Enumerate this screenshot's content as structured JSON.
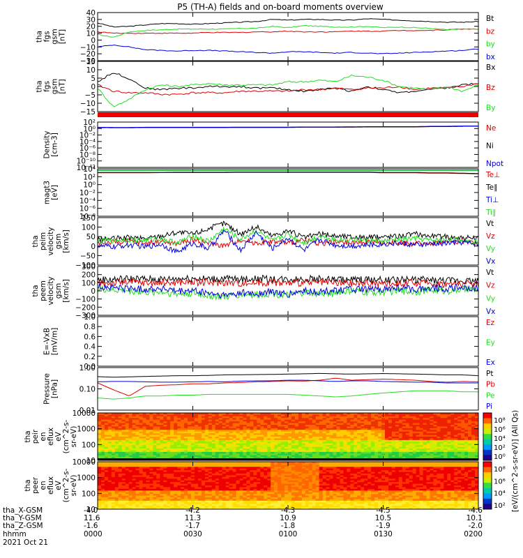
{
  "title": "P5 (TH-A) fields and on-board moments overview",
  "colors": {
    "black": "#000000",
    "red": "#dd0000",
    "green": "#22dd22",
    "blue": "#0000dd"
  },
  "colorbar": {
    "unit_label": "[eV/(cm^2-s-sr-eV)] (All Qs)",
    "panel1_ticks": [
      "10⁸",
      "10⁶",
      "10⁴",
      "10²",
      "10⁰"
    ],
    "panel2_ticks": [
      "10⁸",
      "10⁶",
      "10⁴",
      "10²"
    ]
  },
  "chart_data": [
    {
      "type": "line",
      "ylabel": [
        "tha",
        "fgs",
        "gsm",
        "[nT]"
      ],
      "yticks": [
        "40",
        "30",
        "20",
        "10",
        "0",
        "−10",
        "−20",
        "−30"
      ],
      "ylim": [
        -30,
        40
      ],
      "series": [
        {
          "name": "Bt",
          "color": "#000000",
          "values": [
            25,
            19,
            20,
            22,
            24,
            24,
            23,
            24,
            25,
            26,
            27,
            30,
            29,
            30,
            30,
            29,
            29,
            31,
            30,
            29,
            28,
            27,
            26,
            26,
            27
          ]
        },
        {
          "name": "bz",
          "color": "#dd0000",
          "values": [
            12,
            10,
            10,
            10,
            10,
            10,
            10,
            11,
            11,
            11,
            12,
            12,
            13,
            12,
            12,
            12,
            13,
            13,
            13,
            14,
            14,
            14,
            15,
            16,
            16
          ]
        },
        {
          "name": "by",
          "color": "#22dd22",
          "values": [
            8,
            4,
            12,
            14,
            15,
            16,
            16,
            16,
            16,
            17,
            17,
            20,
            18,
            21,
            20,
            19,
            19,
            20,
            18,
            19,
            18,
            17,
            15,
            16,
            16
          ]
        },
        {
          "name": "bx",
          "color": "#0000dd",
          "values": [
            -10,
            -7,
            -10,
            -14,
            -15,
            -16,
            -15,
            -15,
            -16,
            -17,
            -18,
            -19,
            -17,
            -17,
            -18,
            -19,
            -18,
            -19,
            -20,
            -19,
            -18,
            -17,
            -16,
            -15,
            -13
          ]
        }
      ]
    },
    {
      "type": "line",
      "ylabel": [
        "tha",
        "fgs",
        "gsm",
        "[nT]"
      ],
      "yticks": [
        "15",
        "10",
        "5",
        "0",
        "−5",
        "−10",
        "−15"
      ],
      "ylim": [
        -17,
        15
      ],
      "series": [
        {
          "name": "Bx",
          "color": "#000000",
          "values": [
            2,
            8,
            4,
            -2,
            -3,
            -2,
            -2,
            -1,
            -1,
            -1,
            -2,
            -2,
            -3,
            -4,
            -3,
            -2,
            -4,
            -1,
            -3,
            -5,
            -4,
            -3,
            -2,
            0,
            1
          ]
        },
        {
          "name": "Bz",
          "color": "#dd0000",
          "values": [
            0,
            -4,
            -5,
            -5,
            -6,
            -6,
            -5,
            -5,
            -5,
            -4,
            -4,
            -4,
            -4,
            -3,
            -3,
            -2,
            -3,
            -2,
            -2,
            -1,
            -3,
            -2,
            -2,
            -1,
            1
          ]
        },
        {
          "name": "By",
          "color": "#22dd22",
          "values": [
            -2,
            -14,
            -9,
            -3,
            0,
            -1,
            0,
            1,
            0,
            0,
            0,
            0,
            2,
            2,
            3,
            2,
            6,
            5,
            3,
            -1,
            -2,
            -3,
            -1,
            -4,
            0
          ]
        }
      ]
    },
    {
      "type": "line",
      "ylabel": [
        "Density",
        "[cm-3]"
      ],
      "yticks": [
        "10²",
        "10⁰",
        "10⁻²",
        "10⁻⁴",
        "10⁻⁶",
        "10⁻⁸",
        "10⁻¹⁰",
        "10⁻¹²"
      ],
      "ylim_exp": [
        -12,
        2
      ],
      "log": true,
      "series": [
        {
          "name": "Ne",
          "color": "#dd0000",
          "values_exp": [
            0.3,
            0.25,
            0.25,
            0.3,
            0.3,
            0.3,
            0.3,
            0.3,
            0.3,
            0.35,
            0.35,
            0.35,
            0.35,
            0.4,
            0.4,
            0.4,
            0.45,
            0.5,
            0.5,
            0.5,
            0.5,
            0.6,
            0.6,
            0.7,
            0.7
          ]
        },
        {
          "name": "Ni",
          "color": "#000000",
          "values_exp": [
            0.3,
            0.25,
            0.25,
            0.3,
            0.3,
            0.3,
            0.3,
            0.3,
            0.3,
            0.35,
            0.35,
            0.35,
            0.35,
            0.4,
            0.4,
            0.4,
            0.45,
            0.5,
            0.5,
            0.5,
            0.5,
            0.6,
            0.6,
            0.7,
            0.7
          ]
        },
        {
          "name": "Npot",
          "color": "#0000dd",
          "values_exp": [
            0.4,
            0.35,
            0.35,
            0.4,
            0.4,
            0.4,
            0.4,
            0.4,
            0.4,
            0.45,
            0.45,
            0.45,
            0.45,
            0.5,
            0.5,
            0.5,
            0.55,
            0.6,
            0.6,
            0.6,
            0.6,
            0.7,
            0.7,
            0.8,
            0.8
          ]
        }
      ]
    },
    {
      "type": "line",
      "ylabel": [
        "magt3",
        "[eV]"
      ],
      "yticks": [
        "10⁴",
        "10²",
        "10⁰",
        "10⁻²",
        "10⁻⁴",
        "10⁻⁶",
        "10⁻⁸"
      ],
      "ylim_exp": [
        -9,
        4
      ],
      "log": true,
      "series": [
        {
          "name": "Te⊥",
          "color": "#dd0000",
          "values_exp": [
            2.9,
            2.9,
            2.9,
            2.9,
            2.95,
            2.95,
            2.95,
            2.95,
            2.95,
            3,
            3,
            3,
            3,
            3,
            3,
            3,
            3,
            3,
            2.9,
            2.9,
            2.9,
            2.8,
            2.8,
            2.7,
            2.6
          ]
        },
        {
          "name": "Te∥",
          "color": "#000000",
          "values_exp": [
            3.0,
            3.0,
            3.0,
            3.0,
            3.0,
            3.05,
            3.05,
            3.05,
            3.05,
            3.1,
            3.1,
            3.1,
            3.1,
            3.1,
            3.1,
            3.1,
            3.1,
            3.1,
            3.0,
            3.0,
            3.0,
            2.9,
            2.9,
            2.8,
            2.7
          ]
        },
        {
          "name": "Ti⊥",
          "color": "#0000dd",
          "values_exp": [
            3.6,
            3.6,
            3.6,
            3.6,
            3.6,
            3.6,
            3.6,
            3.6,
            3.6,
            3.6,
            3.6,
            3.6,
            3.6,
            3.6,
            3.6,
            3.6,
            3.6,
            3.6,
            3.6,
            3.6,
            3.6,
            3.6,
            3.6,
            3.6,
            3.6
          ]
        },
        {
          "name": "Ti∥",
          "color": "#22dd22",
          "values_exp": [
            3.5,
            3.5,
            3.5,
            3.5,
            3.5,
            3.5,
            3.5,
            3.5,
            3.5,
            3.5,
            3.5,
            3.5,
            3.5,
            3.5,
            3.5,
            3.5,
            3.5,
            3.5,
            3.5,
            3.5,
            3.5,
            3.5,
            3.5,
            3.5,
            3.5
          ]
        }
      ]
    },
    {
      "type": "line",
      "ylabel": [
        "tha",
        "peim",
        "velocity",
        "gsm",
        "[km/s]"
      ],
      "yticks": [
        "150",
        "100",
        "50",
        "0",
        "−50",
        "−100"
      ],
      "ylim": [
        -110,
        150
      ],
      "series": [
        {
          "name": "Vt",
          "color": "#000000",
          "values": [
            30,
            35,
            40,
            35,
            50,
            70,
            60,
            90,
            120,
            60,
            100,
            50,
            80,
            40,
            60,
            50,
            45,
            40,
            45,
            50,
            60,
            50,
            45,
            40,
            35
          ]
        },
        {
          "name": "Vz",
          "color": "#dd0000",
          "values": [
            10,
            15,
            20,
            10,
            20,
            5,
            30,
            10,
            -5,
            30,
            10,
            20,
            10,
            25,
            10,
            15,
            10,
            20,
            10,
            15,
            5,
            10,
            15,
            20,
            10
          ]
        },
        {
          "name": "Vy",
          "color": "#22dd22",
          "values": [
            20,
            25,
            30,
            25,
            35,
            10,
            50,
            20,
            90,
            30,
            80,
            20,
            60,
            10,
            50,
            30,
            30,
            25,
            20,
            30,
            35,
            25,
            30,
            25,
            20
          ]
        },
        {
          "name": "Vx",
          "color": "#0000dd",
          "values": [
            -5,
            -10,
            0,
            -10,
            5,
            -40,
            10,
            -20,
            80,
            -30,
            70,
            -20,
            40,
            -30,
            30,
            0,
            -5,
            0,
            5,
            10,
            0,
            5,
            10,
            15,
            5
          ]
        }
      ]
    },
    {
      "type": "line",
      "ylabel": [
        "tha",
        "peem",
        "velocity",
        "gsm",
        "[km/s]"
      ],
      "yticks": [
        "300",
        "200",
        "100",
        "0",
        "−100",
        "−200",
        "−300"
      ],
      "ylim": [
        -300,
        300
      ],
      "series": [
        {
          "name": "Vt",
          "color": "#000000",
          "values": [
            130,
            140,
            150,
            145,
            140,
            150,
            155,
            145,
            150,
            140,
            150,
            145,
            140,
            150,
            145,
            140,
            135,
            140,
            130,
            135,
            140,
            130,
            125,
            130,
            120
          ]
        },
        {
          "name": "Vz",
          "color": "#dd0000",
          "values": [
            90,
            100,
            110,
            100,
            95,
            105,
            110,
            100,
            105,
            95,
            100,
            105,
            95,
            100,
            100,
            95,
            90,
            95,
            90,
            95,
            100,
            90,
            85,
            90,
            85
          ]
        },
        {
          "name": "Vy",
          "color": "#22dd22",
          "values": [
            20,
            10,
            0,
            -20,
            -10,
            -40,
            -30,
            -60,
            -80,
            -40,
            -50,
            -30,
            -60,
            -20,
            -40,
            -20,
            0,
            -20,
            -10,
            0,
            -10,
            10,
            0,
            20,
            10
          ]
        },
        {
          "name": "Vx",
          "color": "#0000dd",
          "values": [
            50,
            40,
            30,
            20,
            30,
            -10,
            0,
            -30,
            -60,
            -20,
            -40,
            -10,
            -50,
            0,
            -20,
            10,
            20,
            10,
            20,
            30,
            20,
            40,
            30,
            40,
            30
          ]
        }
      ]
    },
    {
      "type": "line",
      "ylabel": [
        "E=-VxB",
        "[mV/m]"
      ],
      "yticks": [
        "1.0",
        "0.8",
        "0.6",
        "0.4",
        "0.2",
        "0.0"
      ],
      "ylim": [
        0,
        1
      ],
      "series": [
        {
          "name": "Ez",
          "color": "#dd0000",
          "values": []
        },
        {
          "name": "Ey",
          "color": "#22dd22",
          "values": []
        },
        {
          "name": "Ex",
          "color": "#0000dd",
          "values": []
        }
      ]
    },
    {
      "type": "line",
      "ylabel": [
        "Pressure",
        "[nPa]"
      ],
      "yticks": [
        "1.00",
        "0.10",
        "0.01"
      ],
      "ylim_exp": [
        -2,
        0.1
      ],
      "log": true,
      "series": [
        {
          "name": "Pt",
          "color": "#000000",
          "values": [
            0.45,
            0.42,
            0.44,
            0.46,
            0.48,
            0.5,
            0.5,
            0.52,
            0.55,
            0.56,
            0.57,
            0.58,
            0.6,
            0.62,
            0.65,
            0.62,
            0.6,
            0.62,
            0.64,
            0.62,
            0.6,
            0.58,
            0.55,
            0.55,
            0.5
          ]
        },
        {
          "name": "Pb",
          "color": "#dd0000",
          "values": [
            0.22,
            0.1,
            0.05,
            0.15,
            0.17,
            0.18,
            0.2,
            0.2,
            0.22,
            0.23,
            0.25,
            0.26,
            0.28,
            0.27,
            0.3,
            0.38,
            0.3,
            0.32,
            0.34,
            0.32,
            0.3,
            0.26,
            0.24,
            0.26,
            0.25
          ]
        },
        {
          "name": "Pe",
          "color": "#22dd22",
          "values": [
            0.04,
            0.035,
            0.04,
            0.05,
            0.05,
            0.055,
            0.055,
            0.06,
            0.06,
            0.06,
            0.06,
            0.06,
            0.06,
            0.055,
            0.05,
            0.045,
            0.05,
            0.06,
            0.07,
            0.08,
            0.09,
            0.09,
            0.09,
            0.08,
            0.08
          ]
        },
        {
          "name": "Pi",
          "color": "#0000dd",
          "values": [
            0.25,
            0.26,
            0.26,
            0.25,
            0.24,
            0.24,
            0.25,
            0.26,
            0.25,
            0.27,
            0.28,
            0.28,
            0.3,
            0.3,
            0.28,
            0.26,
            0.28,
            0.28,
            0.26,
            0.25,
            0.24,
            0.24,
            0.22,
            0.22,
            0.22
          ]
        }
      ]
    },
    {
      "type": "heatmap",
      "ylabel": [
        "tha",
        "peir",
        "en",
        "eflux",
        "eV",
        "(cm^2-s-",
        "sr-eV)"
      ],
      "yticks": [
        "10000",
        "1000",
        "100",
        "10"
      ],
      "log": true
    },
    {
      "type": "heatmap",
      "ylabel": [
        "tha",
        "peer",
        "en",
        "eflux",
        "eV",
        "(cm^2-s-",
        "sr-eV)"
      ],
      "yticks": [
        "10000",
        "1000",
        "100",
        "10"
      ],
      "log": true
    }
  ],
  "xaxis": {
    "rows": [
      {
        "label": "tha_X-GSM",
        "values": [
          "-4.0",
          "-4.2",
          "-4.3",
          "-4.5",
          "-4.6"
        ]
      },
      {
        "label": "tha_Y-GSM",
        "values": [
          "11.6",
          "11.3",
          "10.9",
          "10.5",
          "10.1"
        ]
      },
      {
        "label": "tha_Z-GSM",
        "values": [
          "-1.6",
          "-1.7",
          "-1.8",
          "-1.9",
          "-2.0"
        ]
      },
      {
        "label": "hhmm",
        "values": [
          "0000",
          "0030",
          "0100",
          "0130",
          "0200"
        ]
      }
    ],
    "date": "2021 Oct 21"
  }
}
